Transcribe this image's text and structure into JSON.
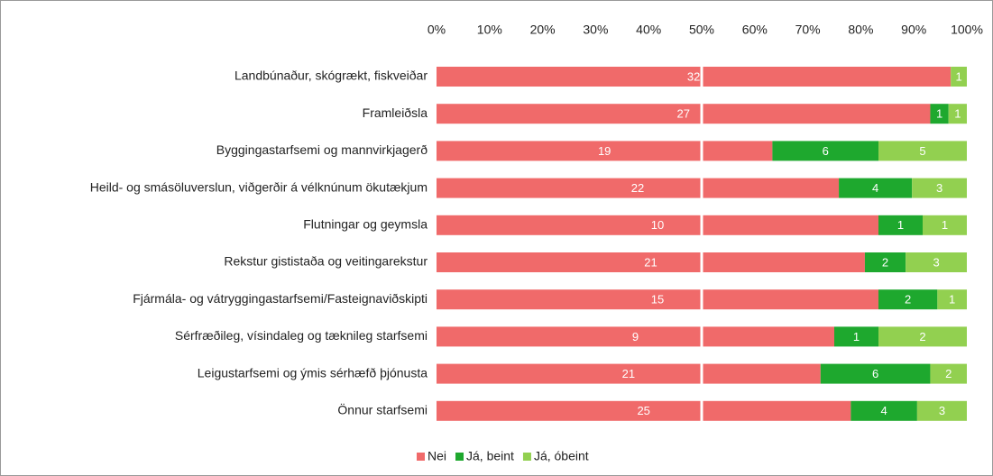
{
  "chart_data": {
    "type": "bar",
    "orientation": "horizontal",
    "stacking": "percent",
    "categories": [
      "Landbúnaður, skógrækt, fiskveiðar",
      "Framleiðsla",
      "Byggingastarfsemi og mannvirkjagerð",
      "Heild- og smásöluverslun, viðgerðir á vélknúnum ökutækjum",
      "Flutningar og geymsla",
      "Rekstur gististaða og veitingarekstur",
      "Fjármála- og vátryggingastarfsemi/Fasteignaviðskipti",
      "Sérfræðileg, vísindaleg og tæknileg starfsemi",
      "Leigustarfsemi og ýmis sérhæfð þjónusta",
      "Önnur starfsemi"
    ],
    "series": [
      {
        "name": "Nei",
        "color": "#f06a6a",
        "values": [
          32,
          27,
          19,
          22,
          10,
          21,
          15,
          9,
          21,
          25
        ]
      },
      {
        "name": "Já, beint",
        "color": "#1ea82e",
        "values": [
          null,
          1,
          6,
          4,
          1,
          2,
          2,
          1,
          6,
          4
        ]
      },
      {
        "name": "Já, óbeint",
        "color": "#92d050",
        "values": [
          1,
          1,
          5,
          3,
          1,
          3,
          1,
          2,
          2,
          3
        ]
      }
    ],
    "xlim": [
      0,
      100
    ],
    "xticks": [
      {
        "value": 0,
        "label": "0%"
      },
      {
        "value": 10,
        "label": "10%"
      },
      {
        "value": 20,
        "label": "20%"
      },
      {
        "value": 30,
        "label": "30%"
      },
      {
        "value": 40,
        "label": "40%"
      },
      {
        "value": 50,
        "label": "50%"
      },
      {
        "value": 60,
        "label": "60%"
      },
      {
        "value": 70,
        "label": "70%"
      },
      {
        "value": 80,
        "label": "80%"
      },
      {
        "value": 90,
        "label": "90%"
      },
      {
        "value": 100,
        "label": "100%"
      }
    ],
    "legend": "bottom"
  }
}
